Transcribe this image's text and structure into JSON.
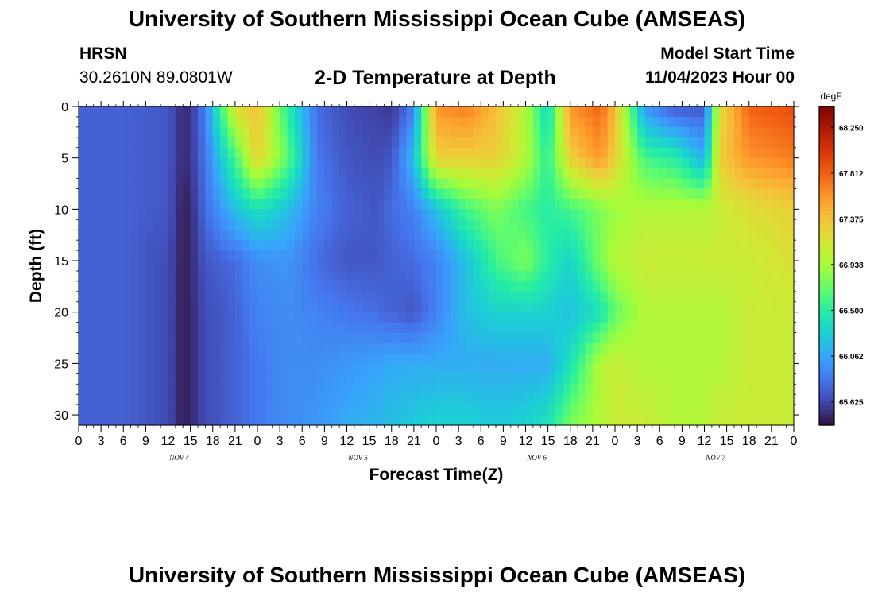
{
  "header": {
    "title": "University of Southern Mississippi Ocean Cube (AMSEAS)",
    "station": "HRSN",
    "coords": "30.2610N  89.0801W",
    "subtitle": "2-D Temperature at Depth",
    "model_start_label": "Model Start Time",
    "model_start_value": "11/04/2023 Hour 00"
  },
  "footer": {
    "title": "University of Southern Mississippi Ocean Cube (AMSEAS)"
  },
  "chart_data": {
    "type": "heatmap",
    "title": "2-D Temperature at Depth",
    "xlabel": "Forecast Time(Z)",
    "ylabel": "Depth (ft)",
    "x_tick_labels": [
      "0",
      "3",
      "6",
      "9",
      "12",
      "15",
      "18",
      "21",
      "0",
      "3",
      "6",
      "9",
      "12",
      "15",
      "18",
      "21",
      "0",
      "3",
      "6",
      "9",
      "12",
      "15",
      "18",
      "21",
      "0",
      "3",
      "6",
      "9",
      "12",
      "15",
      "18",
      "21",
      "0"
    ],
    "day_labels": [
      "NOV 4",
      "NOV 5",
      "NOV 6",
      "NOV 7"
    ],
    "x_range_hours": [
      0,
      96
    ],
    "y_ticks": [
      0,
      5,
      10,
      15,
      20,
      25,
      30
    ],
    "y_range_ft": [
      0,
      31
    ],
    "colorbar": {
      "unit": "degF",
      "tick_labels": [
        "68.250",
        "67.812",
        "67.375",
        "66.938",
        "66.500",
        "66.062",
        "65.625"
      ],
      "tick_values": [
        68.25,
        67.812,
        67.375,
        66.938,
        66.5,
        66.062,
        65.625
      ],
      "range": [
        65.4,
        68.45
      ],
      "colors": [
        "#30123b",
        "#4145ab",
        "#4675ed",
        "#39a2fc",
        "#1bcfd4",
        "#24eca6",
        "#61fc6c",
        "#a4fc3b",
        "#d1e834",
        "#f3c63a",
        "#fe9b2d",
        "#f36315",
        "#d93806",
        "#b11901",
        "#7a0403"
      ]
    },
    "depth_levels_ft": [
      0,
      5,
      10,
      15,
      20,
      25,
      31
    ],
    "time_hours": [
      0,
      6,
      12,
      14,
      15,
      17,
      21,
      24,
      28,
      32,
      36,
      40,
      42,
      45,
      48,
      52,
      56,
      60,
      63,
      66,
      70,
      72,
      76,
      80,
      84,
      86,
      90,
      96
    ],
    "temperature_degF": [
      [
        65.75,
        65.75,
        65.7,
        65.5,
        65.55,
        65.9,
        67.2,
        67.4,
        66.5,
        65.8,
        65.65,
        65.6,
        65.55,
        65.9,
        67.6,
        67.7,
        67.4,
        67.0,
        66.3,
        67.6,
        67.8,
        67.4,
        66.0,
        65.7,
        65.7,
        67.2,
        67.8,
        67.9
      ],
      [
        65.75,
        65.75,
        65.7,
        65.5,
        65.55,
        65.85,
        66.6,
        67.3,
        66.7,
        65.85,
        65.7,
        65.65,
        65.7,
        66.2,
        67.3,
        67.3,
        67.3,
        67.0,
        66.5,
        67.3,
        67.6,
        67.3,
        66.6,
        66.5,
        66.1,
        67.3,
        67.6,
        67.7
      ],
      [
        65.75,
        65.75,
        65.7,
        65.45,
        65.5,
        65.8,
        66.2,
        66.4,
        66.2,
        65.9,
        65.75,
        65.7,
        65.8,
        65.9,
        66.2,
        66.6,
        66.8,
        66.6,
        66.5,
        66.6,
        66.8,
        66.9,
        67.0,
        67.0,
        67.0,
        67.1,
        67.2,
        67.3
      ],
      [
        65.75,
        65.75,
        65.65,
        65.45,
        65.5,
        65.7,
        65.8,
        65.95,
        66.0,
        65.8,
        65.7,
        65.7,
        65.75,
        65.8,
        65.9,
        66.2,
        66.6,
        66.8,
        66.5,
        66.3,
        66.8,
        67.0,
        67.1,
        67.1,
        67.1,
        67.1,
        67.1,
        67.2
      ],
      [
        65.75,
        65.75,
        65.65,
        65.45,
        65.5,
        65.65,
        65.75,
        65.9,
        65.95,
        65.9,
        65.85,
        65.8,
        65.75,
        65.7,
        65.9,
        66.2,
        66.3,
        66.3,
        66.3,
        66.2,
        66.4,
        66.7,
        67.0,
        67.0,
        67.0,
        67.0,
        67.1,
        67.1
      ],
      [
        65.75,
        65.75,
        65.65,
        65.45,
        65.5,
        65.65,
        65.75,
        65.85,
        65.95,
        65.95,
        66.0,
        66.05,
        66.1,
        66.1,
        66.1,
        66.1,
        66.1,
        66.1,
        66.1,
        66.4,
        67.0,
        67.1,
        67.0,
        67.0,
        67.0,
        67.0,
        67.1,
        67.1
      ],
      [
        65.75,
        65.75,
        65.65,
        65.45,
        65.5,
        65.65,
        65.75,
        65.85,
        65.95,
        66.0,
        66.1,
        66.15,
        66.2,
        66.25,
        66.3,
        66.3,
        66.25,
        66.3,
        66.4,
        66.8,
        67.0,
        67.1,
        67.1,
        67.0,
        67.0,
        67.1,
        67.1,
        67.1
      ]
    ]
  }
}
